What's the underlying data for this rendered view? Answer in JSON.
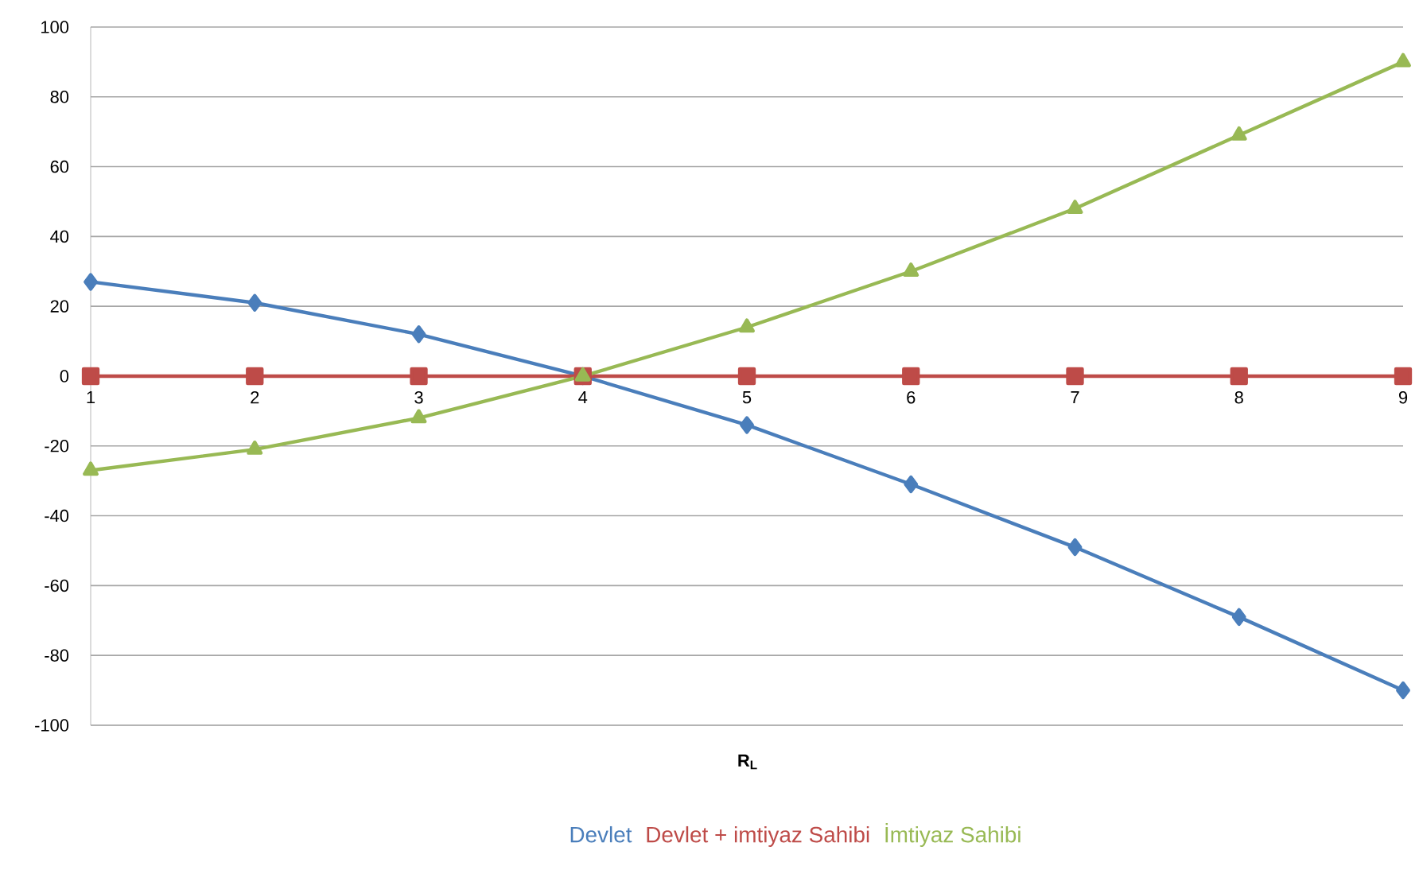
{
  "chart_data": {
    "type": "line",
    "xlabel": "R$_{L}$",
    "x": [
      1,
      2,
      3,
      4,
      5,
      6,
      7,
      8,
      9
    ],
    "xlim": [
      1,
      9
    ],
    "xticks": [
      1,
      2,
      3,
      4,
      5,
      6,
      7,
      8,
      9
    ],
    "ylim": [
      -100,
      100
    ],
    "yticks": [
      -100,
      -80,
      -60,
      -40,
      -20,
      0,
      20,
      40,
      60,
      80,
      100
    ],
    "grid": "y",
    "legend": "bottom",
    "line_style": "solid",
    "series": [
      {
        "name": "Devlet",
        "color": "#4a7ebb",
        "marker": "diamond",
        "values": [
          27,
          21,
          12,
          0,
          -14,
          -31,
          -49,
          -69,
          -90
        ]
      },
      {
        "name": "Devlet + imtiyaz Sahibi",
        "color": "#be4b48",
        "marker": "square",
        "values": [
          0,
          0,
          0,
          0,
          0,
          0,
          0,
          0,
          0
        ]
      },
      {
        "name": "İmtiyaz Sahibi",
        "color": "#98b954",
        "marker": "triangle",
        "values": [
          -27,
          -21,
          -12,
          0,
          14,
          30,
          48,
          69,
          90
        ]
      }
    ]
  }
}
